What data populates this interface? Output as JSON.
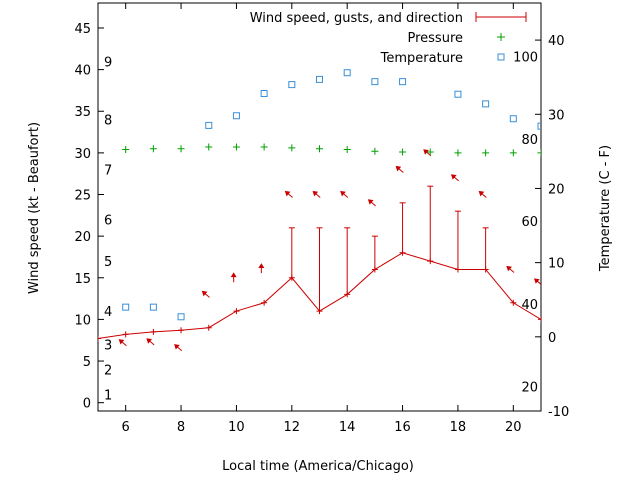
{
  "chart_data": {
    "type": "line",
    "xlabel": "Local time (America/Chicago)",
    "ylabel_left": "Wind speed (kt - Beaufort)",
    "ylabel_right": "Temperature (C - F)",
    "xlim": [
      5,
      21
    ],
    "ylim_left": [
      -1,
      48
    ],
    "ylim_right": [
      -10,
      45
    ],
    "x_ticks": [
      6,
      8,
      10,
      12,
      14,
      16,
      18,
      20
    ],
    "y_left_ticks": [
      0,
      5,
      10,
      15,
      20,
      25,
      30,
      35,
      40,
      45
    ],
    "y_right_ticks": [
      -10,
      0,
      10,
      20,
      30,
      40
    ],
    "beaufort_labels": [
      {
        "label": "1",
        "kt": 1
      },
      {
        "label": "2",
        "kt": 4
      },
      {
        "label": "3",
        "kt": 7
      },
      {
        "label": "4",
        "kt": 11
      },
      {
        "label": "5",
        "kt": 17
      },
      {
        "label": "6",
        "kt": 22
      },
      {
        "label": "7",
        "kt": 28
      },
      {
        "label": "8",
        "kt": 34
      },
      {
        "label": "9",
        "kt": 41
      }
    ],
    "fahrenheit_labels": [
      {
        "label": "20",
        "celsius": -6.7
      },
      {
        "label": "40",
        "celsius": 4.4
      },
      {
        "label": "60",
        "celsius": 15.6
      },
      {
        "label": "80",
        "celsius": 26.7
      },
      {
        "label": "100",
        "celsius": 37.8
      }
    ],
    "legend": {
      "position": "top-right"
    },
    "series": [
      {
        "name": "Wind speed, gusts, and direction",
        "color": "#cc0000",
        "x": [
          5,
          6,
          7,
          8,
          9,
          10,
          11,
          12,
          13,
          14,
          15,
          16,
          17,
          18,
          19,
          20,
          21
        ],
        "speed": [
          7.7,
          8.2,
          8.5,
          8.7,
          9,
          11,
          12,
          15,
          11,
          13,
          16,
          18,
          17,
          16,
          16,
          12,
          10
        ],
        "gust": [
          null,
          null,
          null,
          null,
          null,
          null,
          null,
          21,
          21,
          21,
          20,
          24,
          26,
          23,
          21,
          null,
          null
        ],
        "arrows": [
          {
            "x": 5.9,
            "y": 7.2,
            "dir": "up-left"
          },
          {
            "x": 6.9,
            "y": 7.3,
            "dir": "up-left"
          },
          {
            "x": 7.9,
            "y": 6.6,
            "dir": "up-left"
          },
          {
            "x": 8.9,
            "y": 13.0,
            "dir": "up-left"
          },
          {
            "x": 9.9,
            "y": 15.0,
            "dir": "up"
          },
          {
            "x": 10.9,
            "y": 16.1,
            "dir": "up"
          },
          {
            "x": 11.9,
            "y": 25.0,
            "dir": "up-left"
          },
          {
            "x": 12.9,
            "y": 25.0,
            "dir": "up-left"
          },
          {
            "x": 13.9,
            "y": 25.0,
            "dir": "up-left"
          },
          {
            "x": 14.9,
            "y": 24.0,
            "dir": "up-left"
          },
          {
            "x": 15.9,
            "y": 28.0,
            "dir": "up-left"
          },
          {
            "x": 16.9,
            "y": 30.0,
            "dir": "up-left"
          },
          {
            "x": 17.9,
            "y": 27.0,
            "dir": "up-left"
          },
          {
            "x": 18.9,
            "y": 25.0,
            "dir": "up-left"
          },
          {
            "x": 19.9,
            "y": 16.0,
            "dir": "up-left"
          },
          {
            "x": 20.9,
            "y": 14.5,
            "dir": "up-left"
          }
        ]
      },
      {
        "name": "Pressure",
        "color": "#00a000",
        "x": [
          6,
          7,
          8,
          9,
          10,
          11,
          12,
          13,
          14,
          15,
          16,
          17,
          18,
          19,
          20,
          21
        ],
        "values": [
          30.4,
          30.5,
          30.5,
          30.7,
          30.7,
          30.7,
          30.6,
          30.5,
          30.4,
          30.2,
          30.1,
          30.1,
          30.0,
          30.0,
          30.0,
          30.0
        ]
      },
      {
        "name": "Temperature",
        "color": "#3a8fd6",
        "x": [
          6,
          7,
          8,
          9,
          10,
          11,
          12,
          13,
          14,
          15,
          16,
          18,
          19,
          20,
          21
        ],
        "values": [
          4,
          4,
          2.7,
          28.5,
          29.8,
          32.8,
          34,
          34.7,
          35.6,
          34.4,
          34.4,
          32.7,
          31.4,
          29.4,
          28.4
        ]
      }
    ]
  }
}
